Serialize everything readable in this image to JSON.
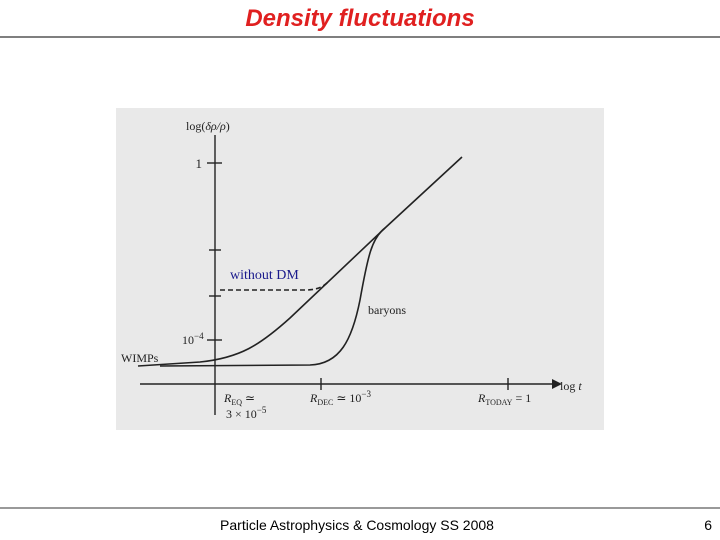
{
  "header": {
    "title": "Density fluctuations"
  },
  "figure": {
    "y_axis_label": {
      "prefix": "log(",
      "symbol": "δρ/ρ",
      "suffix": ")"
    },
    "y_ticks": [
      {
        "label": "1"
      },
      {
        "base": "10",
        "exponent": "−4"
      }
    ],
    "x_axis_label": {
      "prefix": "log ",
      "symbol": "t"
    },
    "curve_labels": {
      "wimps": "WIMPs",
      "without_dm": "without DM",
      "baryons": "baryons"
    },
    "x_ticks": [
      {
        "symbol": "R",
        "subscript": "EQ",
        "relation": " ≃",
        "line2": "3 × 10",
        "exponent": "−5"
      },
      {
        "symbol": "R",
        "subscript": "DEC",
        "relation": " ≃ 10",
        "exponent": "−3"
      },
      {
        "symbol": "R",
        "subscript": "TODAY",
        "relation": " = 1"
      }
    ]
  },
  "footer": {
    "text": "Particle Astrophysics & Cosmology SS 2008",
    "page": "6"
  }
}
